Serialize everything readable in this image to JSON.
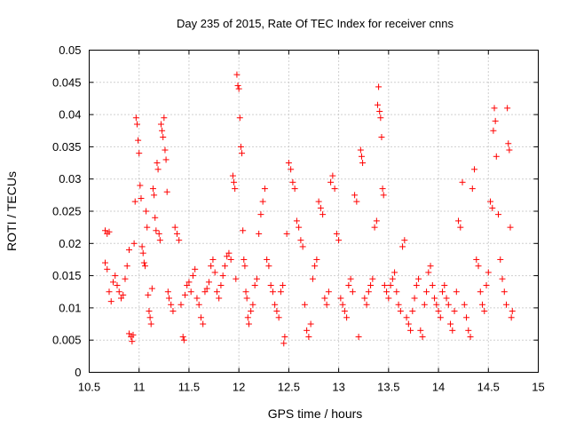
{
  "chart_data": {
    "type": "scatter",
    "title": "Day 235 of 2015, Rate Of TEC Index for receiver cnns",
    "xlabel": "GPS time / hours",
    "ylabel": "ROTI / TECUs",
    "xlim": [
      10.5,
      15
    ],
    "ylim": [
      0,
      0.05
    ],
    "xticks": [
      "10.5",
      "11",
      "11.5",
      "12",
      "12.5",
      "13",
      "13.5",
      "14",
      "14.5",
      "15"
    ],
    "yticks": [
      "0",
      "0.005",
      "0.01",
      "0.015",
      "0.02",
      "0.025",
      "0.03",
      "0.035",
      "0.04",
      "0.045",
      "0.05"
    ],
    "grid": true,
    "marker": "+",
    "series_color": "#ff0000",
    "series": [
      {
        "name": "ROTI",
        "points": [
          [
            10.66,
            0.022
          ],
          [
            10.68,
            0.0215
          ],
          [
            10.7,
            0.0218
          ],
          [
            10.66,
            0.017
          ],
          [
            10.68,
            0.016
          ],
          [
            10.7,
            0.0125
          ],
          [
            10.72,
            0.011
          ],
          [
            10.74,
            0.014
          ],
          [
            10.76,
            0.015
          ],
          [
            10.78,
            0.0135
          ],
          [
            10.8,
            0.0125
          ],
          [
            10.82,
            0.0115
          ],
          [
            10.84,
            0.012
          ],
          [
            10.86,
            0.0145
          ],
          [
            10.88,
            0.0165
          ],
          [
            10.9,
            0.019
          ],
          [
            10.9,
            0.006
          ],
          [
            10.92,
            0.0055
          ],
          [
            10.93,
            0.0048
          ],
          [
            10.94,
            0.0058
          ],
          [
            10.95,
            0.02
          ],
          [
            10.96,
            0.0265
          ],
          [
            10.97,
            0.0395
          ],
          [
            10.98,
            0.0385
          ],
          [
            10.99,
            0.036
          ],
          [
            11.0,
            0.034
          ],
          [
            11.01,
            0.029
          ],
          [
            11.02,
            0.027
          ],
          [
            11.03,
            0.0195
          ],
          [
            11.04,
            0.0185
          ],
          [
            11.05,
            0.017
          ],
          [
            11.06,
            0.0165
          ],
          [
            11.07,
            0.025
          ],
          [
            11.08,
            0.0225
          ],
          [
            11.09,
            0.012
          ],
          [
            11.1,
            0.0095
          ],
          [
            11.11,
            0.0085
          ],
          [
            11.12,
            0.0075
          ],
          [
            11.13,
            0.013
          ],
          [
            11.14,
            0.0285
          ],
          [
            11.15,
            0.0275
          ],
          [
            11.16,
            0.024
          ],
          [
            11.17,
            0.022
          ],
          [
            11.18,
            0.0325
          ],
          [
            11.19,
            0.0315
          ],
          [
            11.2,
            0.0215
          ],
          [
            11.21,
            0.0205
          ],
          [
            11.22,
            0.0385
          ],
          [
            11.23,
            0.0375
          ],
          [
            11.24,
            0.0365
          ],
          [
            11.25,
            0.0395
          ],
          [
            11.26,
            0.0345
          ],
          [
            11.27,
            0.033
          ],
          [
            11.28,
            0.028
          ],
          [
            11.29,
            0.0125
          ],
          [
            11.3,
            0.0115
          ],
          [
            11.32,
            0.0105
          ],
          [
            11.34,
            0.0095
          ],
          [
            11.36,
            0.0225
          ],
          [
            11.38,
            0.0215
          ],
          [
            11.4,
            0.0205
          ],
          [
            11.42,
            0.0105
          ],
          [
            11.44,
            0.0055
          ],
          [
            11.45,
            0.005
          ],
          [
            11.46,
            0.012
          ],
          [
            11.48,
            0.0135
          ],
          [
            11.5,
            0.014
          ],
          [
            11.52,
            0.0125
          ],
          [
            11.54,
            0.015
          ],
          [
            11.56,
            0.016
          ],
          [
            11.58,
            0.0115
          ],
          [
            11.6,
            0.0105
          ],
          [
            11.62,
            0.0085
          ],
          [
            11.64,
            0.0075
          ],
          [
            11.66,
            0.0125
          ],
          [
            11.68,
            0.013
          ],
          [
            11.7,
            0.014
          ],
          [
            11.72,
            0.0165
          ],
          [
            11.74,
            0.0175
          ],
          [
            11.76,
            0.0155
          ],
          [
            11.78,
            0.0125
          ],
          [
            11.8,
            0.0115
          ],
          [
            11.82,
            0.0135
          ],
          [
            11.84,
            0.015
          ],
          [
            11.86,
            0.0165
          ],
          [
            11.88,
            0.018
          ],
          [
            11.9,
            0.0185
          ],
          [
            11.92,
            0.0175
          ],
          [
            11.94,
            0.0305
          ],
          [
            11.95,
            0.0295
          ],
          [
            11.96,
            0.0285
          ],
          [
            11.97,
            0.0145
          ],
          [
            11.98,
            0.0462
          ],
          [
            11.99,
            0.0445
          ],
          [
            12.0,
            0.044
          ],
          [
            12.01,
            0.0395
          ],
          [
            12.02,
            0.035
          ],
          [
            12.03,
            0.034
          ],
          [
            12.04,
            0.022
          ],
          [
            12.05,
            0.0175
          ],
          [
            12.06,
            0.0165
          ],
          [
            12.07,
            0.0125
          ],
          [
            12.08,
            0.0115
          ],
          [
            12.09,
            0.0085
          ],
          [
            12.1,
            0.0075
          ],
          [
            12.12,
            0.0095
          ],
          [
            12.14,
            0.0105
          ],
          [
            12.16,
            0.0135
          ],
          [
            12.18,
            0.0145
          ],
          [
            12.2,
            0.0215
          ],
          [
            12.22,
            0.0245
          ],
          [
            12.24,
            0.0265
          ],
          [
            12.26,
            0.0285
          ],
          [
            12.28,
            0.0175
          ],
          [
            12.3,
            0.0165
          ],
          [
            12.32,
            0.0135
          ],
          [
            12.34,
            0.0125
          ],
          [
            12.36,
            0.0105
          ],
          [
            12.38,
            0.0095
          ],
          [
            12.4,
            0.0085
          ],
          [
            12.42,
            0.0125
          ],
          [
            12.44,
            0.0135
          ],
          [
            12.45,
            0.0045
          ],
          [
            12.46,
            0.0055
          ],
          [
            12.48,
            0.0215
          ],
          [
            12.5,
            0.0325
          ],
          [
            12.52,
            0.0315
          ],
          [
            12.54,
            0.0295
          ],
          [
            12.56,
            0.0285
          ],
          [
            12.58,
            0.0235
          ],
          [
            12.6,
            0.0225
          ],
          [
            12.62,
            0.0205
          ],
          [
            12.64,
            0.0195
          ],
          [
            12.66,
            0.0105
          ],
          [
            12.68,
            0.0065
          ],
          [
            12.7,
            0.0055
          ],
          [
            12.72,
            0.0075
          ],
          [
            12.74,
            0.0145
          ],
          [
            12.76,
            0.0165
          ],
          [
            12.78,
            0.0175
          ],
          [
            12.8,
            0.0265
          ],
          [
            12.82,
            0.0255
          ],
          [
            12.84,
            0.0245
          ],
          [
            12.86,
            0.0115
          ],
          [
            12.88,
            0.0105
          ],
          [
            12.9,
            0.0125
          ],
          [
            12.92,
            0.0295
          ],
          [
            12.94,
            0.0305
          ],
          [
            12.96,
            0.0285
          ],
          [
            12.98,
            0.0215
          ],
          [
            13.0,
            0.0205
          ],
          [
            13.02,
            0.0115
          ],
          [
            13.04,
            0.0105
          ],
          [
            13.06,
            0.0095
          ],
          [
            13.08,
            0.0085
          ],
          [
            13.1,
            0.0135
          ],
          [
            13.12,
            0.0145
          ],
          [
            13.14,
            0.0125
          ],
          [
            13.16,
            0.0275
          ],
          [
            13.18,
            0.0265
          ],
          [
            13.2,
            0.0055
          ],
          [
            13.22,
            0.0345
          ],
          [
            13.23,
            0.0335
          ],
          [
            13.24,
            0.0325
          ],
          [
            13.26,
            0.0115
          ],
          [
            13.28,
            0.0105
          ],
          [
            13.3,
            0.0125
          ],
          [
            13.32,
            0.0135
          ],
          [
            13.34,
            0.0145
          ],
          [
            13.36,
            0.0225
          ],
          [
            13.38,
            0.0235
          ],
          [
            13.39,
            0.0415
          ],
          [
            13.4,
            0.0443
          ],
          [
            13.41,
            0.0405
          ],
          [
            13.42,
            0.0395
          ],
          [
            13.43,
            0.0365
          ],
          [
            13.44,
            0.0285
          ],
          [
            13.45,
            0.0275
          ],
          [
            13.46,
            0.0135
          ],
          [
            13.48,
            0.0125
          ],
          [
            13.5,
            0.0115
          ],
          [
            13.52,
            0.0135
          ],
          [
            13.54,
            0.0145
          ],
          [
            13.56,
            0.0155
          ],
          [
            13.58,
            0.0125
          ],
          [
            13.6,
            0.0105
          ],
          [
            13.62,
            0.0095
          ],
          [
            13.64,
            0.0195
          ],
          [
            13.66,
            0.0205
          ],
          [
            13.68,
            0.0085
          ],
          [
            13.7,
            0.0075
          ],
          [
            13.72,
            0.0065
          ],
          [
            13.74,
            0.0095
          ],
          [
            13.76,
            0.0115
          ],
          [
            13.78,
            0.0135
          ],
          [
            13.8,
            0.0145
          ],
          [
            13.82,
            0.0065
          ],
          [
            13.84,
            0.0055
          ],
          [
            13.86,
            0.0105
          ],
          [
            13.88,
            0.0125
          ],
          [
            13.9,
            0.0155
          ],
          [
            13.92,
            0.0165
          ],
          [
            13.94,
            0.0135
          ],
          [
            13.96,
            0.0115
          ],
          [
            13.98,
            0.0105
          ],
          [
            14.0,
            0.0095
          ],
          [
            14.02,
            0.0085
          ],
          [
            14.04,
            0.0125
          ],
          [
            14.06,
            0.0135
          ],
          [
            14.08,
            0.0115
          ],
          [
            14.1,
            0.0105
          ],
          [
            14.12,
            0.0075
          ],
          [
            14.14,
            0.0065
          ],
          [
            14.16,
            0.0095
          ],
          [
            14.18,
            0.0125
          ],
          [
            14.2,
            0.0235
          ],
          [
            14.22,
            0.0225
          ],
          [
            14.24,
            0.0295
          ],
          [
            14.26,
            0.0105
          ],
          [
            14.28,
            0.0085
          ],
          [
            14.3,
            0.0065
          ],
          [
            14.32,
            0.0055
          ],
          [
            14.34,
            0.0285
          ],
          [
            14.36,
            0.0315
          ],
          [
            14.38,
            0.0175
          ],
          [
            14.4,
            0.0165
          ],
          [
            14.42,
            0.0125
          ],
          [
            14.44,
            0.0105
          ],
          [
            14.46,
            0.0095
          ],
          [
            14.48,
            0.0135
          ],
          [
            14.5,
            0.0155
          ],
          [
            14.52,
            0.0265
          ],
          [
            14.54,
            0.0255
          ],
          [
            14.55,
            0.0375
          ],
          [
            14.56,
            0.041
          ],
          [
            14.57,
            0.039
          ],
          [
            14.58,
            0.0335
          ],
          [
            14.6,
            0.0245
          ],
          [
            14.62,
            0.0175
          ],
          [
            14.64,
            0.0145
          ],
          [
            14.66,
            0.0125
          ],
          [
            14.68,
            0.0105
          ],
          [
            14.69,
            0.041
          ],
          [
            14.7,
            0.0355
          ],
          [
            14.71,
            0.0345
          ],
          [
            14.72,
            0.0225
          ],
          [
            14.73,
            0.0085
          ],
          [
            14.74,
            0.0095
          ]
        ]
      }
    ]
  }
}
